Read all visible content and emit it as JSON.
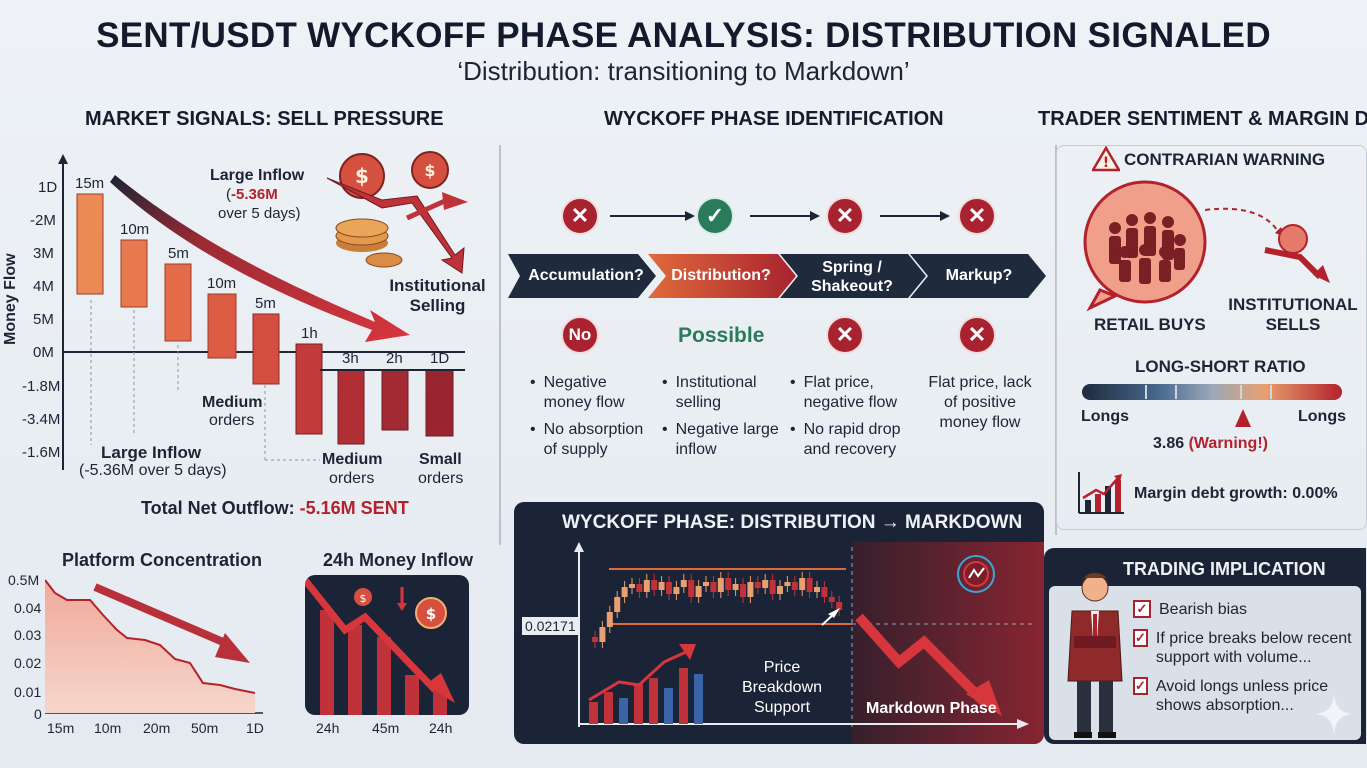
{
  "header": {
    "title": "SENT/USDT WYCKOFF PHASE ANALYSIS: DISTRIBUTION SIGNALED",
    "subtitle": "‘Distribution: transitioning to Markdown’"
  },
  "market_signals": {
    "title": "MARKET SIGNALS: SELL PRESSURE",
    "ylabel": "Money Flow",
    "y_ticks": [
      "1D",
      "-2M",
      "3M",
      "4M",
      "5M",
      "0M",
      "-1.8M",
      "-3.4M",
      "-1.6M"
    ],
    "bar_labels": [
      "15m",
      "10m",
      "5m",
      "10m",
      "5m",
      "1h",
      "3h",
      "2h",
      "1D"
    ],
    "annotations": {
      "large_inflow_top": "Large Inflow",
      "large_inflow_top_value": "-5.36M",
      "large_inflow_top_period": "over 5 days)",
      "large_inflow_top_paren": "(",
      "institutional_selling": "Institutional Selling",
      "medium_orders_1": "Medium",
      "medium_orders_1b": "orders",
      "large_inflow_bottom": "Large Inflow",
      "large_inflow_bottom_detail": "(-5.36M over 5 days)",
      "medium_orders_2": "Medium",
      "medium_orders_2b": "orders",
      "small_orders": "Small",
      "small_orders_b": "orders"
    },
    "total_label": "Total Net Outflow: ",
    "total_value": "-5.16M SENT"
  },
  "platform": {
    "title": "Platform Concentration",
    "y_ticks": [
      "0.5M",
      "0.04",
      "0.03",
      "0.02",
      "0.01",
      "0"
    ],
    "x_ticks": [
      "15m",
      "10m",
      "20m",
      "50m",
      "1D"
    ]
  },
  "inflow24": {
    "title": "24h Money Inflow",
    "x_ticks": [
      "24h",
      "45m",
      "24h"
    ]
  },
  "wyckoff": {
    "title": "WYCKOFF PHASE IDENTIFICATION",
    "phases": [
      {
        "label": "Accumulation?",
        "status": "No",
        "bullets": [
          "Negative money flow",
          "No absorption of supply"
        ]
      },
      {
        "label": "Distribution?",
        "status": "Possible",
        "bullets": [
          "Institutional selling",
          "Negative large inflow"
        ]
      },
      {
        "label": "Spring / Shakeout?",
        "status": "",
        "bullets": [
          "Flat price, negative flow",
          "No rapid drop and recovery"
        ]
      },
      {
        "label": "Markup?",
        "status": "",
        "bullets": [
          "Flat price, lack of positive money flow"
        ]
      }
    ]
  },
  "chart_panel": {
    "title": "WYCKOFF PHASE: DISTRIBUTION → MARKDOWN",
    "price_level": "0.02171",
    "breakdown_label_1": "Price Breakdown",
    "breakdown_label_2": "Support",
    "markdown_label": "Markdown Phase"
  },
  "sentiment": {
    "title": "TRADER SENTIMENT & MARGIN DATA",
    "warning": "CONTRARIAN WARNING",
    "retail": "RETAIL BUYS",
    "institutional_1": "INSTITUTIONAL",
    "institutional_2": "SELLS",
    "ratio_title": "LONG-SHORT RATIO",
    "ratio_left": "Longs",
    "ratio_right": "Longs",
    "ratio_value": "3.86",
    "ratio_warning": "(Warning!)",
    "ratio_fraction": 0.62,
    "margin": "Margin debt growth: 0.00%"
  },
  "implication": {
    "title": "TRADING IMPLICATION",
    "items": [
      "Bearish bias",
      "If price breaks below recent support with volume...",
      "Avoid longs unless price shows absorption..."
    ]
  },
  "colors": {
    "red": "#a8232f",
    "green": "#2a7a5c",
    "navy": "#1b2436"
  }
}
